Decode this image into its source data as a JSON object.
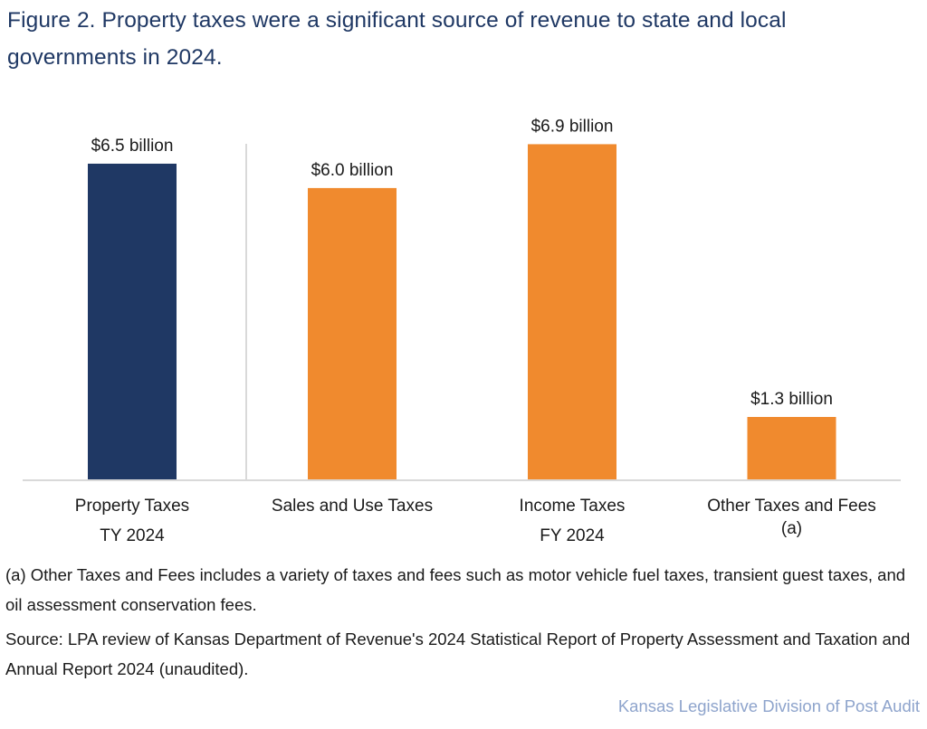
{
  "title": "Figure 2. Property taxes were a significant source of revenue to state and local governments in 2024.",
  "chart_data": {
    "type": "bar",
    "title": "Figure 2. Property taxes were a significant source of revenue to state and local governments in 2024.",
    "xlabel": "",
    "ylabel": "",
    "units": "billion dollars",
    "ylim": [
      0,
      6.9
    ],
    "grid": false,
    "legend": "none",
    "categories": [
      [
        "Property Taxes",
        "TY 2024"
      ],
      [
        "Sales and Use Taxes",
        ""
      ],
      [
        "Income Taxes",
        "FY 2024"
      ],
      [
        "Other Taxes and Fees",
        "(a)"
      ]
    ],
    "values": [
      6.5,
      6.0,
      6.9,
      1.3
    ],
    "data_labels": [
      "$6.5 billion",
      "$6.0 billion",
      "$6.9 billion",
      "$1.3 billion"
    ],
    "colors": [
      "#1f3864",
      "#f08a2e",
      "#f08a2e",
      "#f08a2e"
    ],
    "axis_color": "#d9d9d9"
  },
  "notes": {
    "footnote": "(a) Other Taxes and Fees includes a variety of taxes and fees such as motor vehicle fuel taxes, transient guest taxes, and oil assessment conservation fees.",
    "source": "Source: LPA review of Kansas Department of Revenue's 2024 Statistical Report of Property Assessment and Taxation and Annual Report 2024 (unaudited)."
  },
  "credit": "Kansas Legislative Division of Post Audit"
}
